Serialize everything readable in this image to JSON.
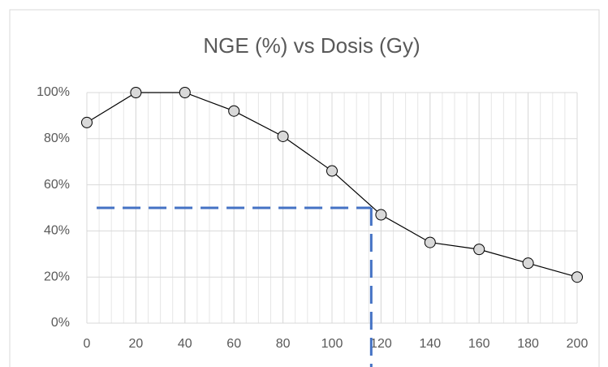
{
  "chart_data": {
    "type": "line",
    "title": "NGE (%) vs Dosis (Gy)",
    "x": [
      0,
      20,
      40,
      60,
      80,
      100,
      120,
      140,
      160,
      180,
      200
    ],
    "series": [
      {
        "name": "NGE",
        "color": "#000000",
        "marker_fill": "#d9d9d9",
        "values": [
          87,
          100,
          100,
          92,
          81,
          66,
          47,
          35,
          32,
          26,
          20
        ]
      }
    ],
    "xlim": [
      0,
      200
    ],
    "xticks": [
      0,
      20,
      40,
      60,
      80,
      100,
      120,
      140,
      160,
      180,
      200
    ],
    "ylim": [
      0,
      100
    ],
    "yticks": [
      {
        "value": 0,
        "label": "0%"
      },
      {
        "value": 20,
        "label": "20%"
      },
      {
        "value": 40,
        "label": "40%"
      },
      {
        "value": 60,
        "label": "60%"
      },
      {
        "value": 80,
        "label": "80%"
      },
      {
        "value": 100,
        "label": "100%"
      }
    ],
    "grid": true,
    "minor_grid_x_step": 5,
    "guide": {
      "x": 116,
      "y": 50,
      "x_start": 4,
      "color": "#4472c4"
    }
  }
}
